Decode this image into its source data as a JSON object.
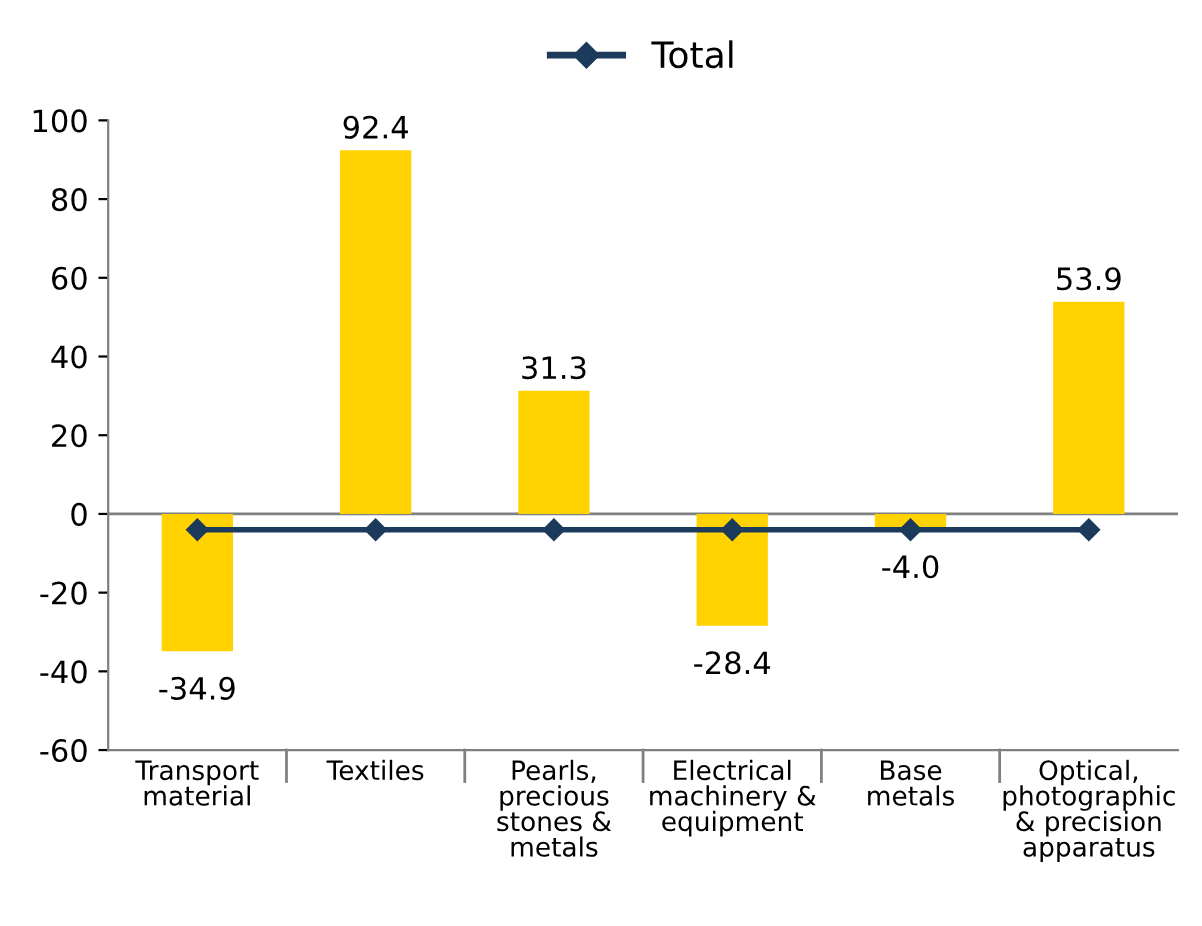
{
  "chart_data": {
    "type": "bar",
    "categories": [
      "Transport\nmaterial",
      "Textiles",
      "Pearls,\nprecious\nstones &\nmetals",
      "Electrical\nmachinery &\nequipment",
      "Base\nmetals",
      "Optical,\nphotographic\n& precision\napparatus"
    ],
    "series": [
      {
        "color": "#ffd200",
        "values": [
          -34.9,
          92.4,
          31.3,
          -28.4,
          -4.0,
          53.9
        ],
        "value_labels": [
          "-34.9",
          "92.4",
          "31.3",
          "-28.4",
          "-4.0",
          "53.9"
        ]
      },
      {
        "type": "line",
        "name": "Total",
        "color": "#1b3a5c",
        "marker": "diamond",
        "values": [
          -4,
          -4,
          -4,
          -4,
          -4,
          -4
        ]
      }
    ],
    "ylim": [
      -60,
      100
    ],
    "yticks": [
      -60,
      -40,
      -20,
      0,
      20,
      40,
      60,
      80,
      100
    ],
    "ref_lines": [
      {
        "axis": "y",
        "value": 0,
        "color": "#808080"
      }
    ],
    "grid": false,
    "legend": "top"
  }
}
